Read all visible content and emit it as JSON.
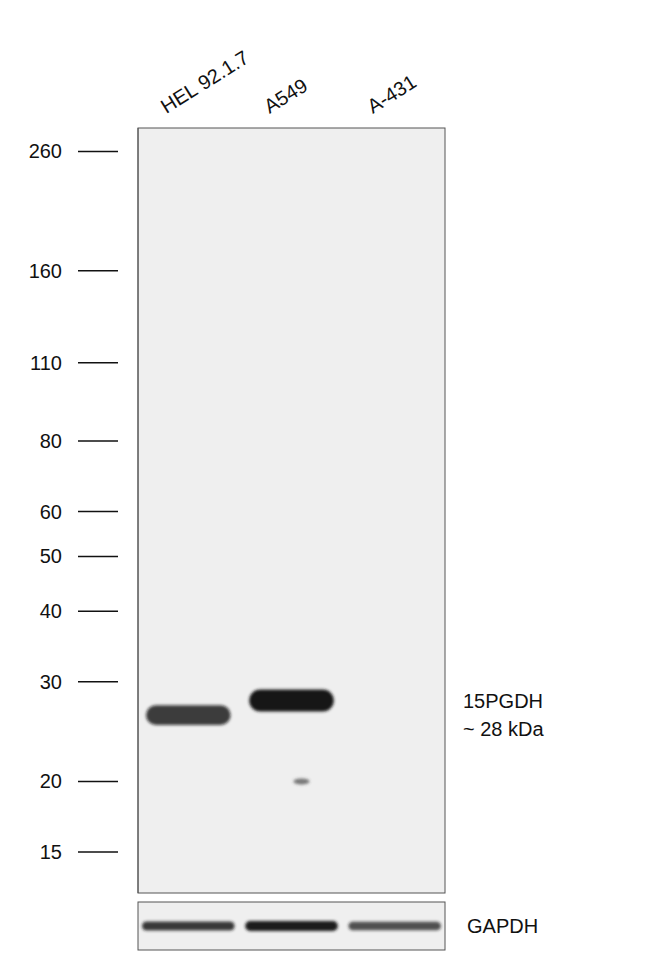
{
  "chart_data": {
    "type": "western_blot",
    "categories": [
      "HEL 92.1.7",
      "A549",
      "A-431"
    ],
    "log": "y",
    "ylim": [
      12.7,
      286
    ],
    "yticks": [
      260,
      160,
      110,
      80,
      60,
      50,
      40,
      30,
      20,
      15
    ],
    "series": [
      {
        "name": "15PGDH",
        "color": "#141414",
        "values": [
          26.2,
          27.8,
          null
        ],
        "intensity": [
          0.8,
          1,
          null
        ]
      }
    ],
    "faint_bands": [
      null,
      20,
      null
    ],
    "annotation": "~ 28 kDa",
    "loading_control": {
      "name": "GAPDH",
      "color": "#1a1a1a",
      "intensity": [
        0.85,
        1,
        0.75
      ]
    }
  }
}
